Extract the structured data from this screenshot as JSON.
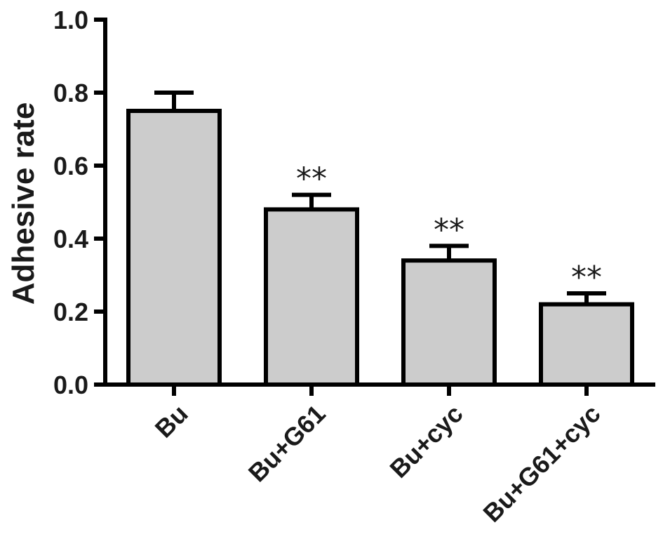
{
  "chart_data": {
    "type": "bar",
    "categories": [
      "Bu",
      "Bu+G61",
      "Bu+cyc",
      "Bu+G61+cyc"
    ],
    "values": [
      0.75,
      0.48,
      0.34,
      0.22
    ],
    "error_upper": [
      0.8,
      0.52,
      0.38,
      0.25
    ],
    "annotations": [
      "",
      "**",
      "**",
      "**"
    ],
    "ylabel": "Adhesive rate",
    "xlabel": "",
    "ylim": [
      0,
      1.0
    ],
    "yticks": [
      "0.0",
      "0.2",
      "0.4",
      "0.6",
      "0.8",
      "1.0"
    ],
    "grid": false,
    "bar_color": "#cccccc",
    "line_color": "#000000"
  }
}
